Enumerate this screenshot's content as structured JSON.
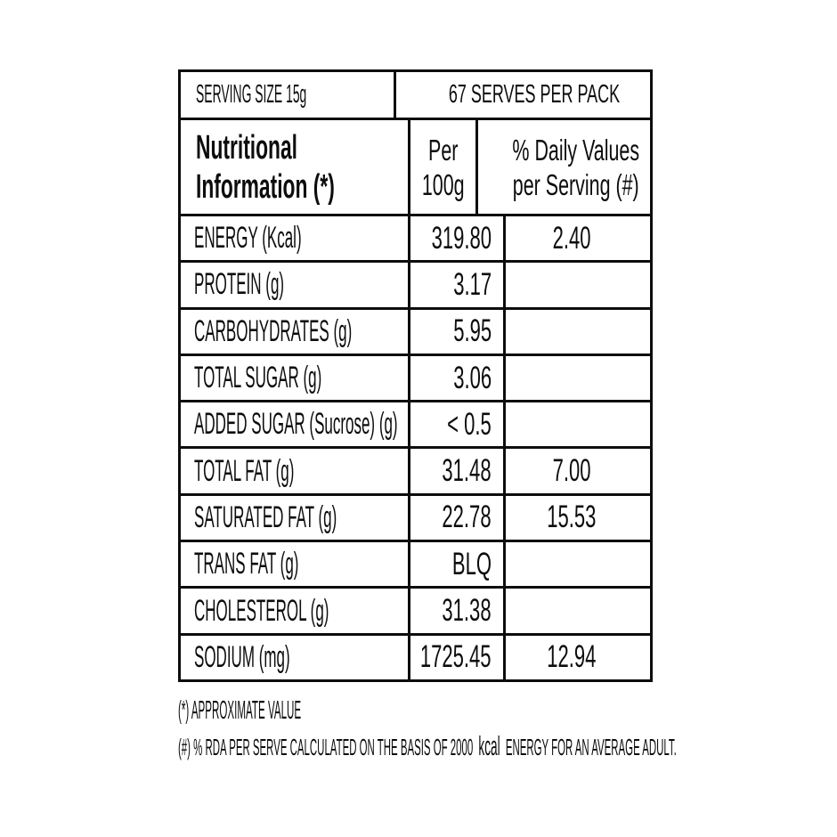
{
  "banner": {
    "serving_size": "SERVING SIZE 15g",
    "serves_per_pack": "67 SERVES PER PACK"
  },
  "header": {
    "title": "Nutritional\nInformation (*)",
    "col_per_100g": "Per\n100g",
    "col_daily_values": "% Daily Values\nper Serving (#)"
  },
  "rows": [
    {
      "label": "ENERGY (Kcal)",
      "per_100g": "319.80",
      "daily_value": "2.40"
    },
    {
      "label": "PROTEIN (g)",
      "per_100g": "3.17",
      "daily_value": ""
    },
    {
      "label": "CARBOHYDRATES (g)",
      "per_100g": "5.95",
      "daily_value": ""
    },
    {
      "label": "TOTAL SUGAR (g)",
      "per_100g": "3.06",
      "daily_value": ""
    },
    {
      "label": "ADDED SUGAR (Sucrose) (g)",
      "per_100g": "< 0.5",
      "daily_value": ""
    },
    {
      "label": "TOTAL FAT (g)",
      "per_100g": "31.48",
      "daily_value": "7.00"
    },
    {
      "label": "SATURATED FAT (g)",
      "per_100g": "22.78",
      "daily_value": "15.53"
    },
    {
      "label": "TRANS FAT (g)",
      "per_100g": "BLQ",
      "daily_value": ""
    },
    {
      "label": "CHOLESTEROL (g)",
      "per_100g": "31.38",
      "daily_value": ""
    },
    {
      "label": "SODIUM (mg)",
      "per_100g": "1725.45",
      "daily_value": "12.94"
    }
  ],
  "footnotes": {
    "note1": "(*) APPROXIMATE VALUE",
    "note2_prefix": "(#) % RDA PER SERVE CALCULATED ON THE BASIS OF 2000",
    "note2_kcal": "kcal",
    "note2_suffix": "ENERGY FOR AN AVERAGE ADULT."
  },
  "colors": {
    "text": "#0d0d0d",
    "border": "#0d0d0d",
    "background": "#ffffff"
  }
}
